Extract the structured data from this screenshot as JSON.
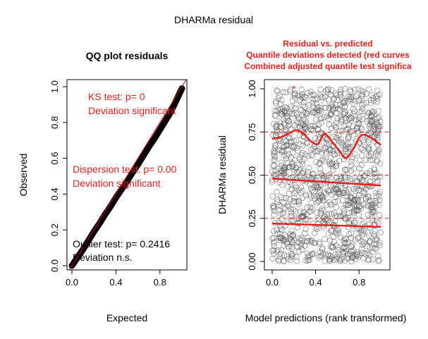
{
  "figure": {
    "title": "DHARMa residual"
  },
  "chart_data": [
    {
      "type": "scatter",
      "subtitle": "QQ plot residuals",
      "xlabel": "Expected",
      "ylabel": "Observed",
      "xlim": [
        0,
        1
      ],
      "ylim": [
        0,
        1
      ],
      "x_ticks": [
        "0.0",
        "0.4",
        "0.8"
      ],
      "y_ticks": [
        "0.0",
        "0.2",
        "0.4",
        "0.6",
        "0.8",
        "1.0"
      ],
      "reference_line": {
        "from": [
          0,
          0
        ],
        "to": [
          1,
          1
        ],
        "color": "#cc0000"
      },
      "points_color": "#000000",
      "qq_points": [
        [
          0.0,
          0.0
        ],
        [
          0.05,
          0.045
        ],
        [
          0.1,
          0.09
        ],
        [
          0.15,
          0.14
        ],
        [
          0.2,
          0.19
        ],
        [
          0.25,
          0.235
        ],
        [
          0.3,
          0.285
        ],
        [
          0.35,
          0.33
        ],
        [
          0.4,
          0.38
        ],
        [
          0.45,
          0.425
        ],
        [
          0.5,
          0.47
        ],
        [
          0.55,
          0.52
        ],
        [
          0.6,
          0.565
        ],
        [
          0.65,
          0.615
        ],
        [
          0.7,
          0.665
        ],
        [
          0.75,
          0.71
        ],
        [
          0.8,
          0.76
        ],
        [
          0.85,
          0.81
        ],
        [
          0.9,
          0.86
        ],
        [
          0.95,
          0.925
        ],
        [
          1.0,
          0.99
        ]
      ],
      "annotations": {
        "ks_test": "KS test: p= 0",
        "ks_result": "Deviation  significant",
        "dispersion_test": "Dispersion test: p= 0.00",
        "dispersion_result": "Deviation  significant",
        "outlier_test": "Outlier test: p= 0.2416",
        "outlier_result": "Deviation  n.s."
      },
      "annotation_colors": {
        "significant": "#e8201c",
        "ns": "#000000"
      }
    },
    {
      "type": "scatter",
      "subtitle_lines": [
        "Residual vs. predicted",
        "Quantile deviations detected (red curves",
        "Combined adjusted quantile test significa"
      ],
      "subtitle_color": "#e8201c",
      "xlabel": "Model predictions (rank transformed)",
      "ylabel": "DHARMa residual",
      "xlim": [
        0,
        1
      ],
      "ylim": [
        0,
        1
      ],
      "x_ticks": [
        "0.0",
        "0.4",
        "0.8"
      ],
      "y_ticks": [
        "0.00",
        "0.25",
        "0.50",
        "0.75",
        "1.00"
      ],
      "reference_lines": [
        0.25,
        0.5,
        0.75
      ],
      "outlier_point": [
        0.2,
        1.0
      ],
      "point_count": 1200,
      "quantile_curves": [
        {
          "q": 0.25,
          "x": [
            0,
            0.25,
            0.5,
            0.75,
            1.0
          ],
          "y": [
            0.22,
            0.215,
            0.21,
            0.205,
            0.2
          ]
        },
        {
          "q": 0.5,
          "x": [
            0,
            0.25,
            0.5,
            0.75,
            1.0
          ],
          "y": [
            0.48,
            0.47,
            0.46,
            0.45,
            0.44
          ]
        },
        {
          "q": 0.75,
          "x": [
            0,
            0.08,
            0.15,
            0.22,
            0.28,
            0.35,
            0.42,
            0.48,
            0.55,
            0.62,
            0.68,
            0.75,
            0.82,
            0.9,
            1.0
          ],
          "y": [
            0.71,
            0.72,
            0.74,
            0.76,
            0.745,
            0.7,
            0.68,
            0.74,
            0.695,
            0.64,
            0.6,
            0.655,
            0.73,
            0.72,
            0.675
          ]
        }
      ],
      "curve_color": "#e8201c",
      "points_color": "#555555"
    }
  ]
}
